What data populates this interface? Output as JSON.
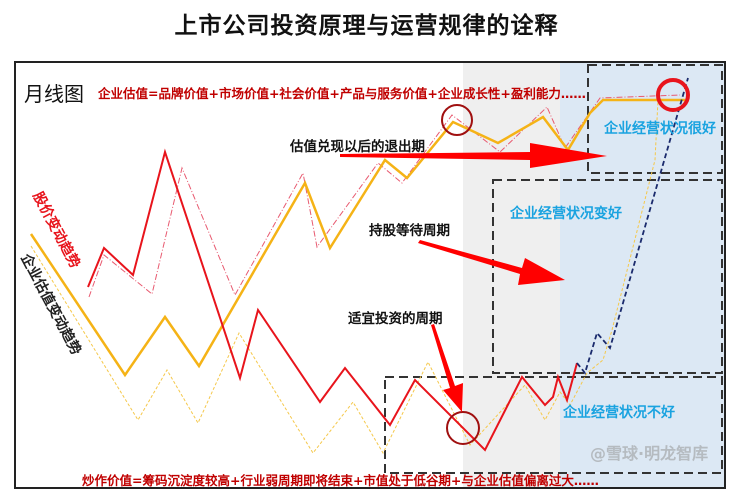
{
  "title": "上市公司投资原理与运营规律的诠释",
  "chart_label": "月线图",
  "top_formula": "企业估值=品牌价值+市场价值+社会价值+产品与服务价值+企业成长性+盈利能力……",
  "bottom_formula": "炒作价值=筹码沉淀度较高+行业弱周期即将结束+市值处于低谷期+与企业估值偏离过大……",
  "series_labels": {
    "price": "股价变动趋势",
    "valuation": "企业估值变动趋势"
  },
  "annotations": {
    "exit": "估值兑现以后的退出期",
    "hold": "持股等待周期",
    "invest": "适宜投资的周期"
  },
  "status_labels": {
    "very_good": "企业经营状况很好",
    "improving": "企业经营状况变好",
    "bad": "企业经营状况不好"
  },
  "watermark": "@雪球·明龙智库",
  "colors": {
    "price": "#e8141c",
    "valuation": "#f5b316",
    "status": "#1aa3e0",
    "formula": "#c00000",
    "arrow": "#ff0000",
    "trend": "#1a2a6c"
  }
}
